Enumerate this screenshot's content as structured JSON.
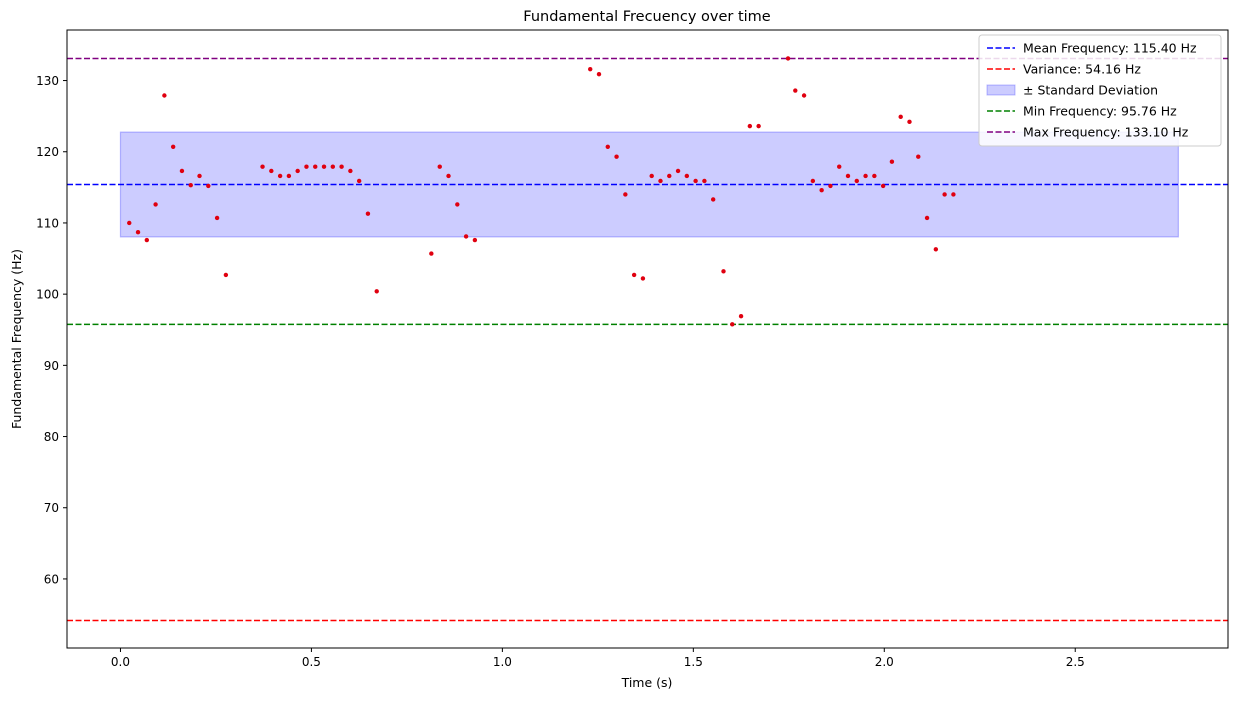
{
  "chart_data": {
    "type": "scatter",
    "title": "Fundamental Frecuency over time",
    "xlabel": "Time (s)",
    "ylabel": "Fundamental Frequency (Hz)",
    "xlim": [
      -0.14,
      2.9
    ],
    "ylim": [
      50.3,
      137.1
    ],
    "xticks": [
      0.0,
      0.5,
      1.0,
      1.5,
      2.0,
      2.5
    ],
    "xtick_labels": [
      "0.0",
      "0.5",
      "1.0",
      "1.5",
      "2.0",
      "2.5"
    ],
    "yticks": [
      60,
      70,
      80,
      90,
      100,
      110,
      120,
      130
    ],
    "ytick_labels": [
      "60",
      "70",
      "80",
      "90",
      "100",
      "110",
      "120",
      "130"
    ],
    "grid": false,
    "legend_position": "top-right",
    "lines": [
      {
        "name": "Mean Frequency: 115.40 Hz",
        "value": 115.4,
        "color": "#0000ff",
        "style": "dashed"
      },
      {
        "name": "Variance: 54.16 Hz",
        "value": 54.16,
        "color": "#ff0000",
        "style": "dashed"
      },
      {
        "name": "Min Frequency: 95.76 Hz",
        "value": 95.76,
        "color": "#008000",
        "style": "dashed"
      },
      {
        "name": "Max Frequency: 133.10 Hz",
        "value": 133.1,
        "color": "#800080",
        "style": "dashed"
      }
    ],
    "band": {
      "name": "± Standard Deviation",
      "x": [
        0.0,
        2.77
      ],
      "y": [
        108.04,
        122.76
      ],
      "color": "#0000ff",
      "alpha": 0.2
    },
    "legend_order": [
      "Mean Frequency: 115.40 Hz",
      "Variance: 54.16 Hz",
      "± Standard Deviation",
      "Min Frequency: 95.76 Hz",
      "Max Frequency: 133.10 Hz"
    ],
    "points_color": "#e00010",
    "points": [
      [
        0.023,
        110.0
      ],
      [
        0.046,
        108.7
      ],
      [
        0.069,
        107.6
      ],
      [
        0.092,
        112.6
      ],
      [
        0.115,
        127.9
      ],
      [
        0.138,
        120.7
      ],
      [
        0.161,
        117.3
      ],
      [
        0.184,
        115.3
      ],
      [
        0.207,
        116.6
      ],
      [
        0.23,
        115.2
      ],
      [
        0.253,
        110.7
      ],
      [
        0.276,
        102.7
      ],
      [
        0.372,
        117.9
      ],
      [
        0.395,
        117.3
      ],
      [
        0.418,
        116.6
      ],
      [
        0.441,
        116.6
      ],
      [
        0.464,
        117.3
      ],
      [
        0.487,
        117.9
      ],
      [
        0.51,
        117.9
      ],
      [
        0.533,
        117.9
      ],
      [
        0.556,
        117.9
      ],
      [
        0.579,
        117.9
      ],
      [
        0.602,
        117.3
      ],
      [
        0.625,
        115.9
      ],
      [
        0.648,
        111.3
      ],
      [
        0.671,
        100.4
      ],
      [
        0.814,
        105.7
      ],
      [
        0.836,
        117.9
      ],
      [
        0.859,
        116.6
      ],
      [
        0.882,
        112.6
      ],
      [
        0.905,
        108.1
      ],
      [
        0.928,
        107.6
      ],
      [
        1.23,
        131.6
      ],
      [
        1.253,
        130.9
      ],
      [
        1.276,
        120.7
      ],
      [
        1.299,
        119.3
      ],
      [
        1.322,
        114.0
      ],
      [
        1.345,
        102.7
      ],
      [
        1.368,
        102.2
      ],
      [
        1.391,
        116.6
      ],
      [
        1.414,
        115.9
      ],
      [
        1.437,
        116.6
      ],
      [
        1.46,
        117.3
      ],
      [
        1.483,
        116.6
      ],
      [
        1.506,
        115.9
      ],
      [
        1.529,
        115.9
      ],
      [
        1.552,
        113.3
      ],
      [
        1.579,
        103.2
      ],
      [
        1.602,
        95.76
      ],
      [
        1.625,
        96.9
      ],
      [
        1.648,
        123.6
      ],
      [
        1.671,
        123.6
      ],
      [
        1.748,
        133.1
      ],
      [
        1.767,
        128.6
      ],
      [
        1.79,
        127.9
      ],
      [
        1.813,
        115.9
      ],
      [
        1.836,
        114.6
      ],
      [
        1.859,
        115.2
      ],
      [
        1.882,
        117.9
      ],
      [
        1.905,
        116.6
      ],
      [
        1.928,
        115.9
      ],
      [
        1.951,
        116.6
      ],
      [
        1.974,
        116.6
      ],
      [
        1.997,
        115.2
      ],
      [
        2.02,
        118.6
      ],
      [
        2.043,
        124.9
      ],
      [
        2.066,
        124.2
      ],
      [
        2.089,
        119.3
      ],
      [
        2.112,
        110.7
      ],
      [
        2.135,
        106.3
      ],
      [
        2.158,
        114.0
      ],
      [
        2.181,
        114.0
      ]
    ]
  }
}
